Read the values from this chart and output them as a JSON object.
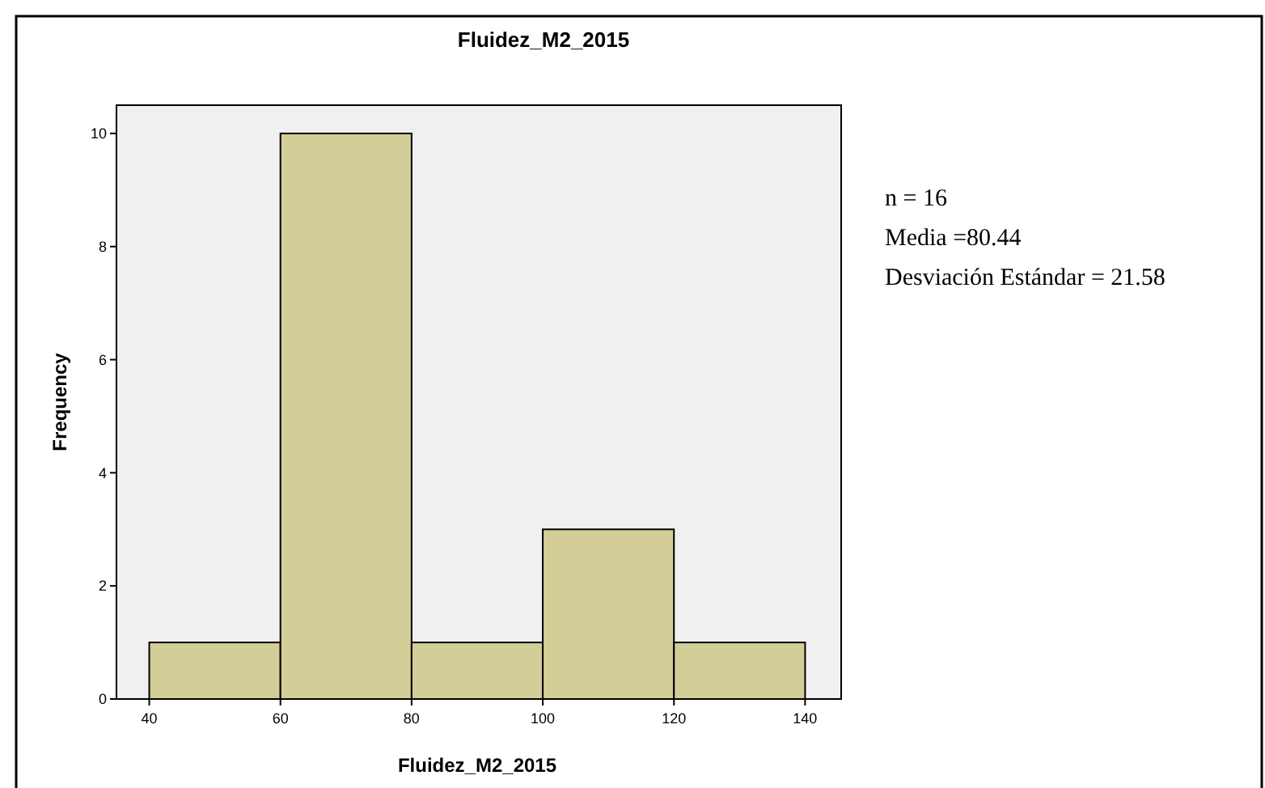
{
  "chart_data": {
    "type": "histogram",
    "title": "Fluidez_M2_2015",
    "xlabel": "Fluidez_M2_2015",
    "ylabel": "Frequency",
    "bins": [
      40,
      60,
      80,
      100,
      120,
      140
    ],
    "values": [
      1,
      10,
      1,
      3,
      1
    ],
    "color": "#d3ce97",
    "xlim": [
      35,
      145.5
    ],
    "xticks": [
      40,
      60,
      80,
      100,
      120,
      140
    ],
    "ylim": [
      0,
      10.5
    ],
    "yticks": [
      0,
      2,
      4,
      6,
      8,
      10
    ],
    "grid": false,
    "annotations": [
      "n = 16",
      "Media =80.44",
      "Desviación Estándar = 21.58"
    ]
  }
}
